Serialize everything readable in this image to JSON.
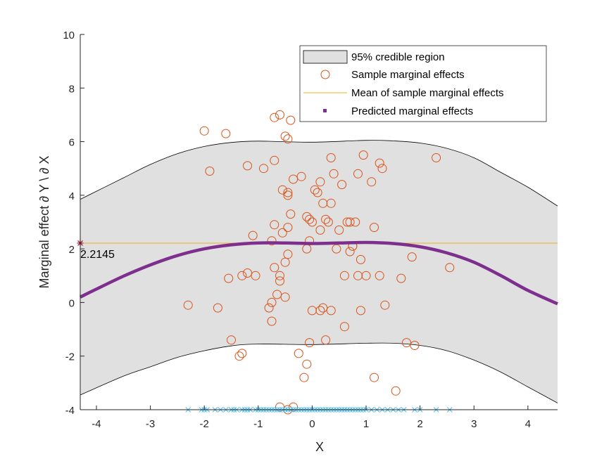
{
  "chart_data": {
    "type": "scatter",
    "xlabel": "X",
    "ylabel": "Marginal effect ∂ Y \\ ∂ X",
    "xlim": [
      -4.3,
      4.55
    ],
    "ylim": [
      -4,
      10
    ],
    "xticks": [
      -4,
      -3,
      -2,
      -1,
      0,
      1,
      2,
      3,
      4
    ],
    "yticks": [
      -4,
      -2,
      0,
      2,
      4,
      6,
      8,
      10
    ],
    "grid": false,
    "legend_position": "top-right",
    "colors": {
      "band_fill": "#e0e0e0",
      "band_edge": "#000000",
      "samples": "#d95319",
      "mean_line": "#edb120",
      "predicted": "#7e2f8e",
      "data_x": "#4dbeee",
      "marker": "#a2142f"
    },
    "legend": [
      "95% credible region",
      "Sample marginal effects",
      "Mean of sample marginal effects",
      "Predicted marginal effects"
    ],
    "mean_value": 2.2145,
    "mean_label": "2.2145",
    "credible_region": {
      "x": [
        -4.3,
        -3.5,
        -3.0,
        -2.5,
        -2.0,
        -1.5,
        -1.0,
        0.0,
        1.0,
        1.5,
        2.0,
        2.5,
        3.0,
        3.5,
        4.0,
        4.55
      ],
      "upper": [
        3.85,
        4.65,
        5.15,
        5.55,
        5.82,
        5.97,
        6.02,
        5.98,
        6.05,
        6.03,
        5.95,
        5.75,
        5.4,
        4.85,
        4.3,
        3.6
      ],
      "lower": [
        -3.45,
        -2.75,
        -2.4,
        -2.05,
        -1.8,
        -1.62,
        -1.55,
        -1.57,
        -1.52,
        -1.52,
        -1.6,
        -1.8,
        -2.15,
        -2.6,
        -3.15,
        -3.75
      ]
    },
    "predicted": {
      "x": [
        -4.3,
        -4.0,
        -3.5,
        -3.0,
        -2.5,
        -2.0,
        -1.5,
        -1.0,
        -0.5,
        0.0,
        0.5,
        1.0,
        1.5,
        2.0,
        2.5,
        3.0,
        3.5,
        4.0,
        4.55
      ],
      "y": [
        0.2,
        0.5,
        0.98,
        1.4,
        1.75,
        2.0,
        2.15,
        2.22,
        2.22,
        2.2,
        2.22,
        2.24,
        2.2,
        2.08,
        1.85,
        1.5,
        1.0,
        0.45,
        -0.05
      ]
    },
    "samples": {
      "x": [
        -2.0,
        -1.6,
        -1.9,
        -2.3,
        -1.75,
        -1.55,
        -1.3,
        -1.3,
        -1.5,
        -1.35,
        -1.2,
        -1.2,
        -1.1,
        -0.9,
        -0.7,
        -0.7,
        -0.6,
        -0.5,
        -0.45,
        -0.4,
        -0.35,
        -0.45,
        -0.55,
        -0.55,
        -0.4,
        -0.7,
        -0.45,
        -0.45,
        -0.5,
        -0.6,
        -0.65,
        -0.75,
        -0.8,
        -0.75,
        -0.6,
        -0.5,
        -0.45,
        -0.2,
        -0.1,
        -0.05,
        0.0,
        0.05,
        0.1,
        0.15,
        0.2,
        0.15,
        0.25,
        0.3,
        0.35,
        0.4,
        0.35,
        0.45,
        0.5,
        0.55,
        0.65,
        0.7,
        0.75,
        0.8,
        0.85,
        0.95,
        1.1,
        1.15,
        1.25,
        1.3,
        0.9,
        0.75,
        0.7,
        0.85,
        0.6,
        1.0,
        1.25,
        1.35,
        1.65,
        1.85,
        2.3,
        2.55,
        1.75,
        1.9,
        1.55,
        1.15,
        0.9,
        0.35,
        0.6,
        0.25,
        0.2,
        0.15,
        0.0,
        -0.05,
        -0.1,
        -0.15,
        -0.25,
        -0.35,
        -0.45,
        -0.6,
        -1.05,
        -0.75,
        -0.7,
        -0.05,
        -0.1
      ],
      "y": [
        6.4,
        6.3,
        4.9,
        -0.1,
        -0.2,
        0.9,
        1.0,
        -1.9,
        -1.4,
        -2.0,
        1.1,
        5.1,
        2.5,
        5.0,
        5.3,
        6.9,
        7.0,
        6.2,
        6.1,
        6.8,
        4.6,
        4.1,
        4.2,
        2.6,
        3.3,
        2.9,
        2.8,
        4.0,
        1.5,
        1.0,
        0.3,
        0.0,
        -0.2,
        -0.7,
        0.8,
        0.2,
        1.8,
        4.7,
        3.2,
        3.1,
        3.0,
        4.2,
        4.1,
        4.5,
        3.7,
        2.7,
        3.1,
        3.0,
        5.4,
        4.8,
        3.7,
        2.0,
        2.7,
        4.4,
        3.0,
        3.0,
        2.1,
        3.0,
        4.8,
        5.5,
        4.5,
        2.8,
        5.2,
        5.0,
        1.6,
        2.1,
        1.9,
        1.0,
        1.0,
        1.0,
        1.0,
        -0.1,
        0.9,
        1.7,
        5.4,
        1.3,
        -1.5,
        -1.6,
        -3.3,
        -2.8,
        -0.3,
        -0.3,
        -0.9,
        -1.4,
        -0.2,
        -0.3,
        -0.3,
        -1.5,
        -2.3,
        -2.8,
        -1.9,
        -3.9,
        -4.0,
        -3.9,
        1.0,
        2.3,
        1.3,
        2.3,
        2.0
      ],
      "note": "values estimated from the plot"
    },
    "x_data": [
      -2.3,
      -2.05,
      -2.0,
      -1.95,
      -1.8,
      -1.7,
      -1.6,
      -1.5,
      -1.45,
      -1.4,
      -1.3,
      -1.25,
      -1.2,
      -1.15,
      -1.05,
      -1.0,
      -0.95,
      -0.9,
      -0.85,
      -0.8,
      -0.75,
      -0.7,
      -0.65,
      -0.6,
      -0.55,
      -0.5,
      -0.45,
      -0.4,
      -0.35,
      -0.3,
      -0.25,
      -0.2,
      -0.15,
      -0.1,
      -0.05,
      0.0,
      0.05,
      0.1,
      0.15,
      0.2,
      0.25,
      0.3,
      0.35,
      0.4,
      0.45,
      0.5,
      0.55,
      0.6,
      0.65,
      0.7,
      0.75,
      0.8,
      0.85,
      0.9,
      0.95,
      1.0,
      1.1,
      1.2,
      1.3,
      1.4,
      1.5,
      1.6,
      1.7,
      1.9,
      2.0,
      2.3,
      2.55
    ]
  }
}
